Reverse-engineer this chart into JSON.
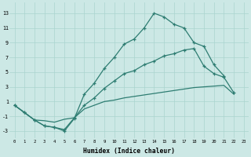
{
  "bg_color": "#cce8e5",
  "grid_color": "#aad4cf",
  "line_color": "#2e7d72",
  "xlabel": "Humidex (Indice chaleur)",
  "xlim": [
    -0.5,
    23.5
  ],
  "ylim": [
    -4.0,
    14.5
  ],
  "xtick_vals": [
    0,
    1,
    2,
    3,
    4,
    5,
    6,
    7,
    8,
    9,
    10,
    11,
    12,
    13,
    14,
    15,
    16,
    17,
    18,
    19,
    20,
    21,
    22,
    23
  ],
  "ytick_vals": [
    -3,
    -1,
    1,
    3,
    5,
    7,
    9,
    11,
    13
  ],
  "curve_upper_x": [
    0,
    1,
    2,
    3,
    4,
    5,
    6,
    7,
    8,
    9,
    10,
    11,
    12,
    13,
    14,
    15,
    16,
    17,
    18,
    19,
    20,
    21
  ],
  "curve_upper_y": [
    0.5,
    -0.5,
    -1.5,
    -2.3,
    -2.5,
    -3.0,
    -1.3,
    2.0,
    3.5,
    5.5,
    7.0,
    8.8,
    9.5,
    11.0,
    13.0,
    12.5,
    11.5,
    11.0,
    9.0,
    8.5,
    6.0,
    4.5
  ],
  "curve_mid_x": [
    0,
    1,
    2,
    3,
    4,
    5,
    6,
    7,
    8,
    9,
    10,
    11,
    12,
    13,
    14,
    15,
    16,
    17,
    18,
    19,
    20,
    21,
    22
  ],
  "curve_mid_y": [
    0.5,
    -0.5,
    -1.5,
    -2.3,
    -2.5,
    -2.8,
    -1.2,
    0.5,
    1.5,
    2.8,
    3.8,
    4.8,
    5.2,
    6.0,
    6.5,
    7.2,
    7.5,
    8.0,
    8.2,
    5.8,
    4.8,
    4.3,
    2.2
  ],
  "curve_low_x": [
    0,
    1,
    2,
    3,
    4,
    5,
    6,
    7,
    8,
    9,
    10,
    11,
    12,
    13,
    14,
    15,
    16,
    17,
    18,
    19,
    20,
    21,
    22
  ],
  "curve_low_y": [
    0.5,
    -0.5,
    -1.5,
    -1.6,
    -1.8,
    -1.4,
    -1.2,
    0.0,
    0.5,
    1.0,
    1.2,
    1.5,
    1.7,
    1.9,
    2.1,
    2.3,
    2.5,
    2.7,
    2.9,
    3.0,
    3.1,
    3.2,
    2.0
  ]
}
